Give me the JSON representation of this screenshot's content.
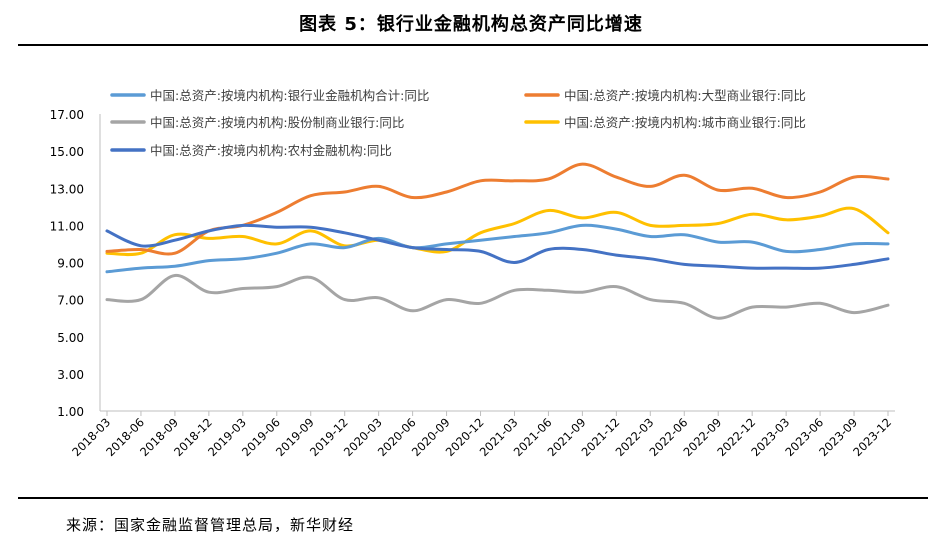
{
  "title": "图表 5：银行业金融机构总资产同比增速",
  "source": "来源：国家金融监督管理总局，新华财经",
  "chart_data": {
    "type": "line",
    "title": "图表 5：银行业金融机构总资产同比增速",
    "xlabel": "",
    "ylabel": "",
    "ylim": [
      1.0,
      17.0
    ],
    "yticks": [
      "1.00",
      "3.00",
      "5.00",
      "7.00",
      "9.00",
      "11.00",
      "13.00",
      "15.00",
      "17.00"
    ],
    "grid": false,
    "legend_position": "top",
    "x": [
      "2018-03",
      "2018-06",
      "2018-09",
      "2018-12",
      "2019-03",
      "2019-06",
      "2019-09",
      "2019-12",
      "2020-03",
      "2020-06",
      "2020-09",
      "2020-12",
      "2021-03",
      "2021-06",
      "2021-09",
      "2021-12",
      "2022-03",
      "2022-06",
      "2022-09",
      "2022-12",
      "2023-03",
      "2023-06",
      "2023-09",
      "2023-12"
    ],
    "series": [
      {
        "name": "中国:总资产:按境内机构:银行业金融机构合计:同比",
        "color": "#5b9bd5",
        "values": [
          8.5,
          8.7,
          8.8,
          9.1,
          9.2,
          9.5,
          10.0,
          9.8,
          10.3,
          9.8,
          10.0,
          10.2,
          10.4,
          10.6,
          11.0,
          10.8,
          10.4,
          10.5,
          10.1,
          10.1,
          9.6,
          9.7,
          10.0,
          10.0
        ]
      },
      {
        "name": "中国:总资产:按境内机构:大型商业银行:同比",
        "color": "#ed7d31",
        "values": [
          9.6,
          9.7,
          9.5,
          10.7,
          11.0,
          11.7,
          12.6,
          12.8,
          13.1,
          12.5,
          12.8,
          13.4,
          13.4,
          13.5,
          14.3,
          13.6,
          13.1,
          13.7,
          12.9,
          13.0,
          12.5,
          12.8,
          13.6,
          13.5
        ]
      },
      {
        "name": "中国:总资产:按境内机构:股份制商业银行:同比",
        "color": "#a5a5a5",
        "values": [
          7.0,
          7.0,
          8.3,
          7.4,
          7.6,
          7.7,
          8.2,
          7.0,
          7.1,
          6.4,
          7.0,
          6.8,
          7.5,
          7.5,
          7.4,
          7.7,
          7.0,
          6.8,
          6.0,
          6.6,
          6.6,
          6.8,
          6.3,
          6.7
        ]
      },
      {
        "name": "中国:总资产:按境内机构:城市商业银行:同比",
        "color": "#ffc000",
        "values": [
          9.5,
          9.5,
          10.5,
          10.3,
          10.4,
          10.0,
          10.7,
          9.9,
          10.2,
          9.8,
          9.6,
          10.6,
          11.1,
          11.8,
          11.4,
          11.7,
          11.0,
          11.0,
          11.1,
          11.6,
          11.3,
          11.5,
          11.9,
          10.6
        ]
      },
      {
        "name": "中国:总资产:按境内机构:农村金融机构:同比",
        "color": "#4472c4",
        "values": [
          10.7,
          9.9,
          10.2,
          10.7,
          11.0,
          10.9,
          10.9,
          10.6,
          10.2,
          9.8,
          9.7,
          9.6,
          9.0,
          9.7,
          9.7,
          9.4,
          9.2,
          8.9,
          8.8,
          8.7,
          8.7,
          8.7,
          8.9,
          9.2
        ]
      }
    ]
  }
}
